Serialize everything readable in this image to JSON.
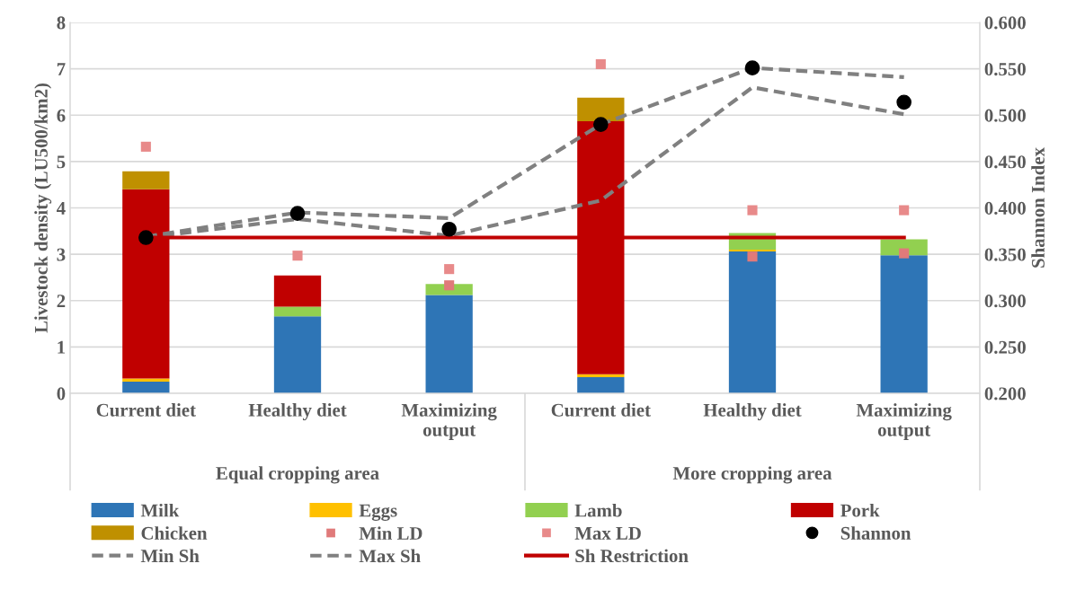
{
  "chart_data": {
    "type": "bar",
    "stacked": true,
    "ylabel": "Livestock density (LU500/km2)",
    "y2label": "Shannon Index",
    "categories": [
      "Current diet",
      "Healthy diet",
      "Maximizing output",
      "Current diet",
      "Healthy diet",
      "Maximizing output"
    ],
    "annotations": [
      "Equal cropping area",
      "More cropping area"
    ],
    "series": [
      {
        "name": "Milk",
        "color": "#2e75b6",
        "values": [
          0.25,
          1.66,
          2.12,
          0.35,
          3.06,
          2.98
        ]
      },
      {
        "name": "Eggs",
        "color": "#ffc000",
        "values": [
          0.07,
          0,
          0,
          0.06,
          0.04,
          0
        ]
      },
      {
        "name": "Lamb",
        "color": "#92d050",
        "values": [
          0,
          0.21,
          0.24,
          0,
          0.36,
          0.34
        ]
      },
      {
        "name": "Pork",
        "color": "#c00000",
        "values": [
          4.08,
          0.67,
          0,
          5.46,
          0,
          0
        ]
      },
      {
        "name": "Chicken",
        "color": "#bf9000",
        "values": [
          0.39,
          0,
          0,
          0.51,
          0,
          0
        ]
      },
      {
        "name": "Min LD",
        "type": "scatter",
        "marker": "square",
        "color": "#e07a7a",
        "values": [
          null,
          null,
          2.33,
          null,
          2.95,
          3.02
        ]
      },
      {
        "name": "Max LD",
        "type": "scatter",
        "marker": "square",
        "color": "#e88a8a",
        "values": [
          5.32,
          2.97,
          2.68,
          7.1,
          3.95,
          3.95
        ]
      },
      {
        "name": "Shannon",
        "type": "scatter",
        "marker": "circle",
        "axis": "y2",
        "color": "#000000",
        "values": [
          0.368,
          0.394,
          0.377,
          0.49,
          0.551,
          0.514
        ]
      },
      {
        "name": "Min Sh",
        "type": "line",
        "line_style": "dashed",
        "axis": "y2",
        "color": "#808080",
        "values": [
          0.368,
          0.388,
          0.37,
          0.408,
          0.53,
          0.501
        ]
      },
      {
        "name": "Max Sh",
        "type": "line",
        "line_style": "dashed",
        "axis": "y2",
        "color": "#808080",
        "values": [
          0.369,
          0.395,
          0.389,
          0.49,
          0.551,
          0.541
        ]
      },
      {
        "name": "Sh Restriction",
        "type": "line",
        "line_style": "solid",
        "axis": "y2",
        "color": "#c00000",
        "values": [
          0.368,
          0.368,
          0.368,
          0.368,
          0.368,
          0.368
        ]
      }
    ],
    "ylim": [
      0,
      8
    ],
    "yticks": [
      0,
      1,
      2,
      3,
      4,
      5,
      6,
      7,
      8
    ],
    "y2lim": [
      0.2,
      0.6
    ],
    "y2ticks": [
      {
        "value": 0.2,
        "label": "0.200"
      },
      {
        "value": 0.25,
        "label": "0.250"
      },
      {
        "value": 0.3,
        "label": "0.300"
      },
      {
        "value": 0.35,
        "label": "0.350"
      },
      {
        "value": 0.4,
        "label": "0.400"
      },
      {
        "value": 0.45,
        "label": "0.450"
      },
      {
        "value": 0.5,
        "label": "0.500"
      },
      {
        "value": 0.55,
        "label": "0.550"
      },
      {
        "value": 0.6,
        "label": "0.600"
      }
    ],
    "grid": "y",
    "legend": "bottom"
  }
}
